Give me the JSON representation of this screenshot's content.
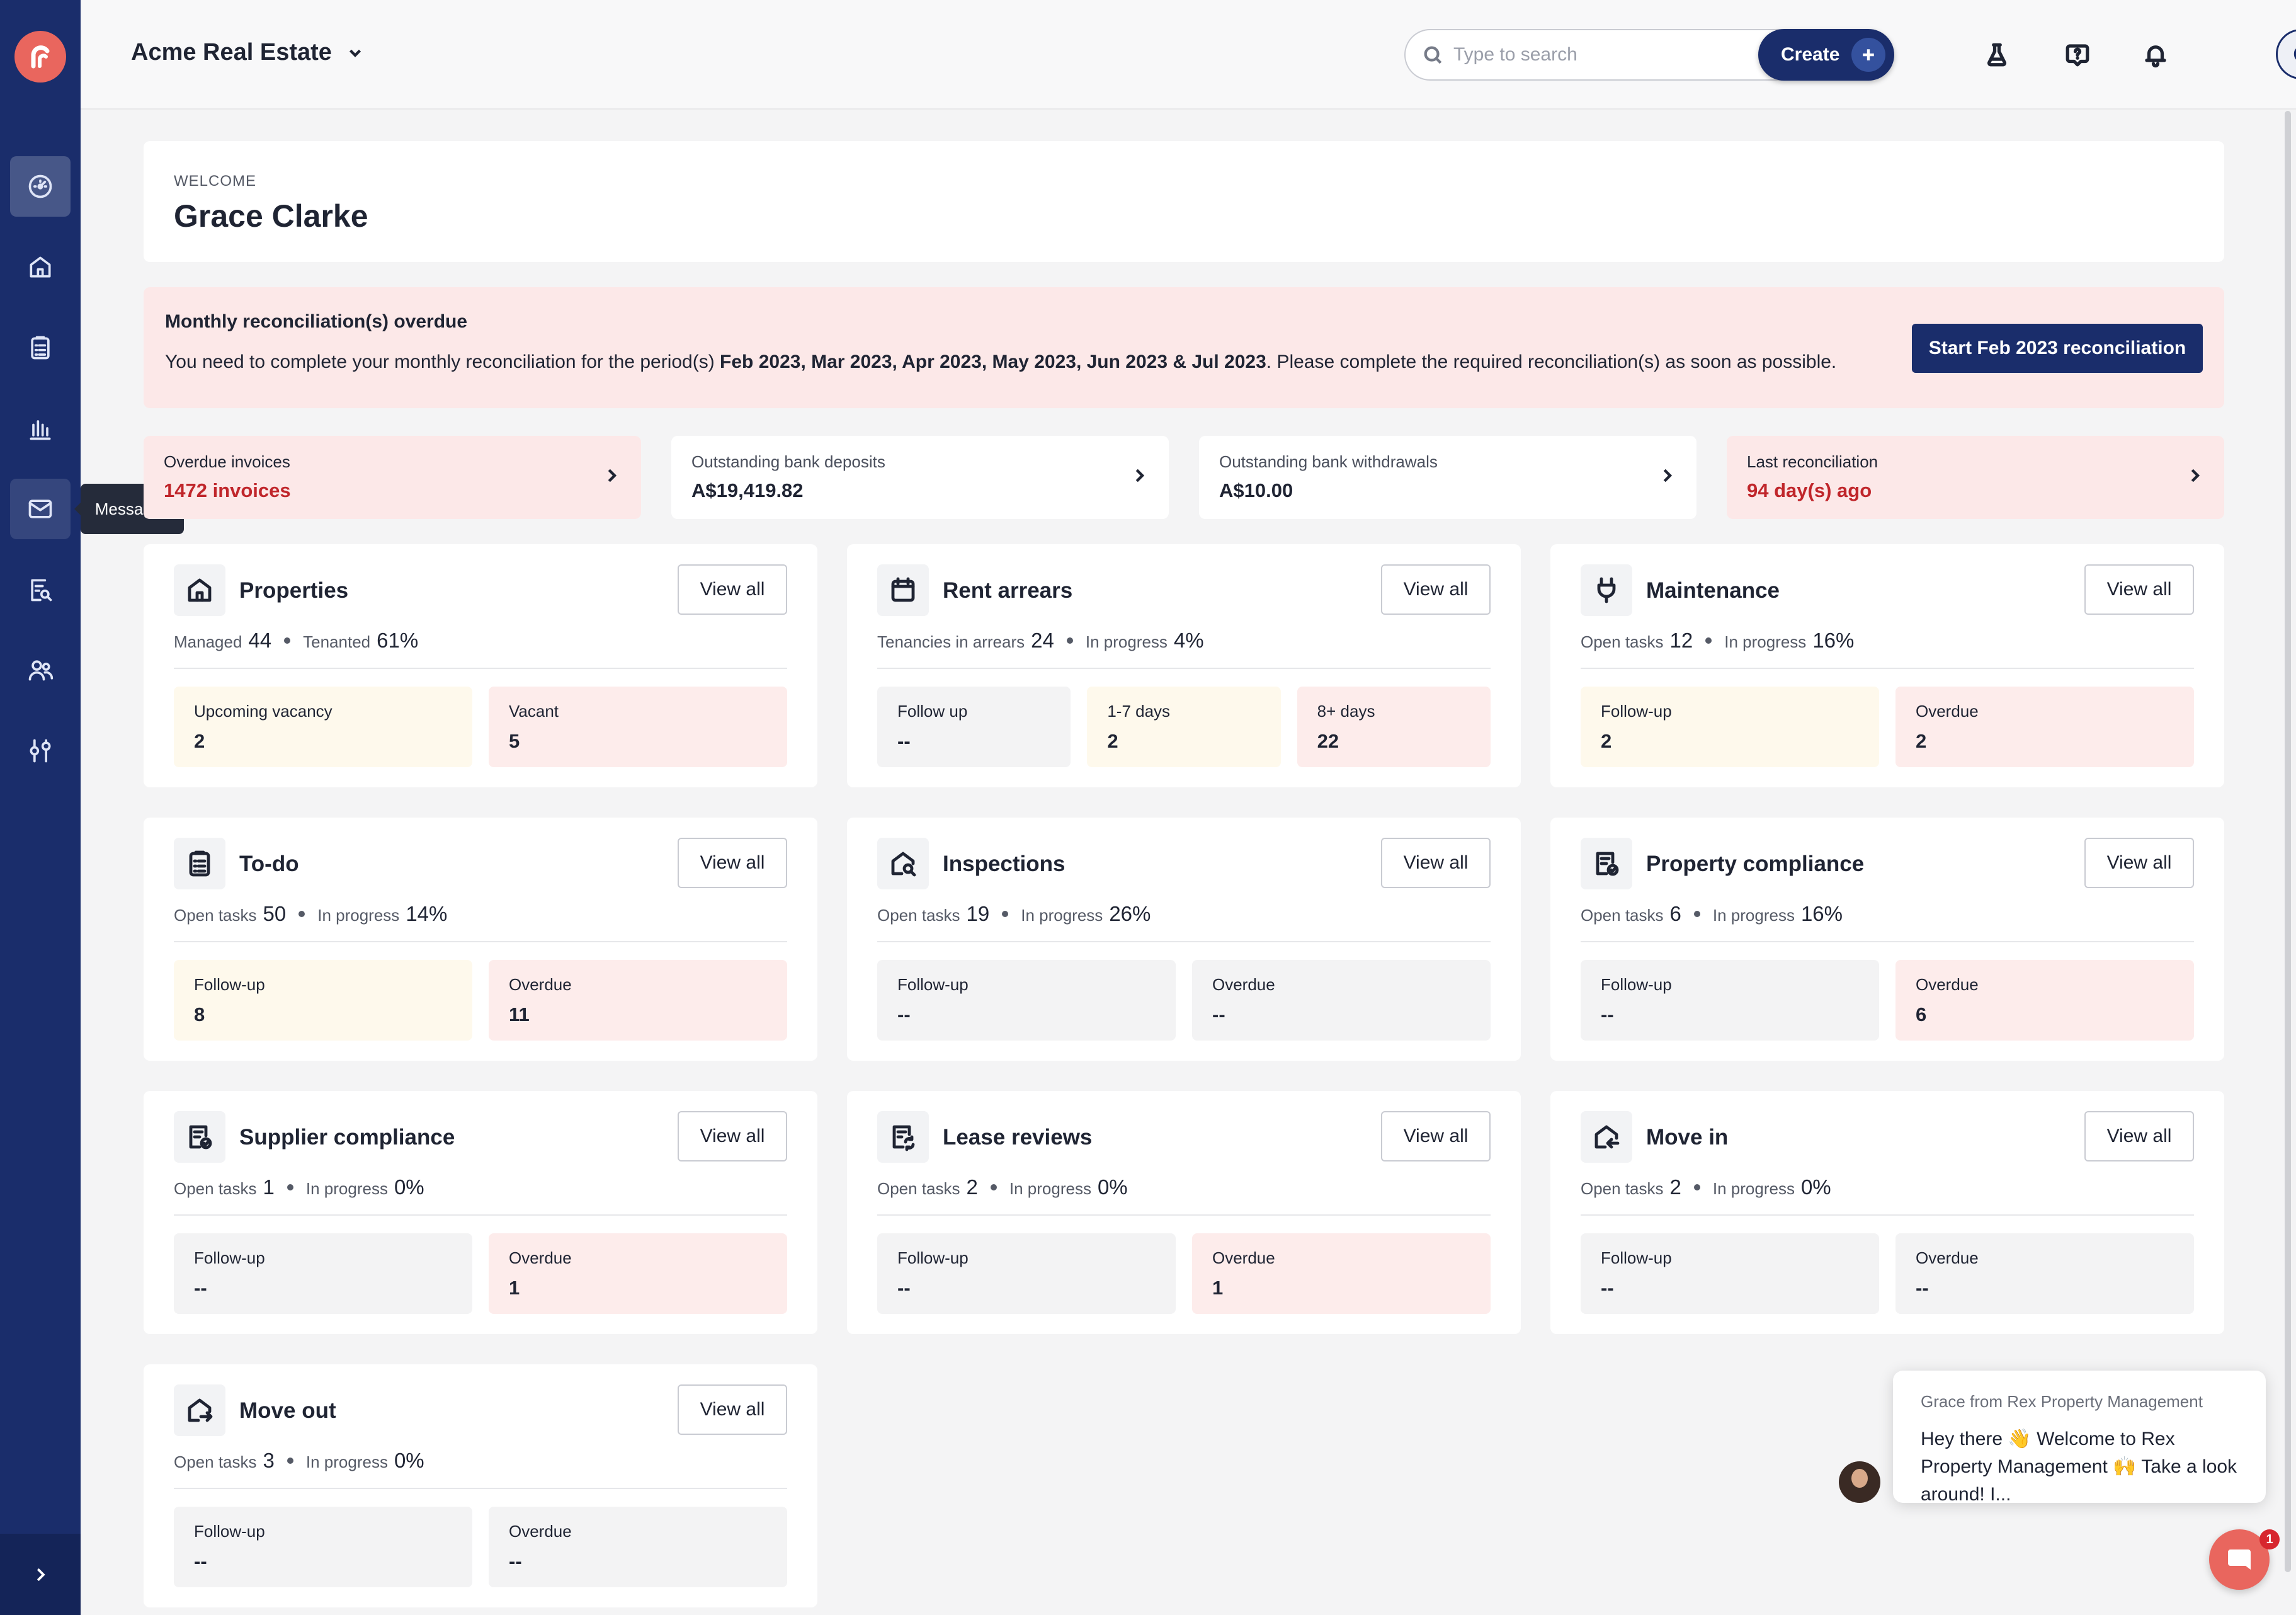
{
  "org": {
    "name": "Acme Real Estate"
  },
  "search": {
    "placeholder": "Type to search"
  },
  "create": {
    "label": "Create"
  },
  "user": {
    "initial": "G"
  },
  "sidebar": {
    "tooltip": "Messages"
  },
  "welcome": {
    "label": "WELCOME",
    "name": "Grace Clarke"
  },
  "alert": {
    "title": "Monthly reconciliation(s) overdue",
    "text_before": "You need to complete your monthly reconciliation for the period(s) ",
    "periods": "Feb 2023, Mar 2023, Apr 2023, May 2023, Jun 2023 & Jul 2023",
    "text_after": ". Please complete the required reconciliation(s) as soon as possible.",
    "button": "Start Feb 2023 reconciliation"
  },
  "stats": [
    {
      "label": "Overdue invoices",
      "value": "1472 invoices"
    },
    {
      "label": "Outstanding bank deposits",
      "value": "A$19,419.82"
    },
    {
      "label": "Outstanding bank withdrawals",
      "value": "A$10.00"
    },
    {
      "label": "Last reconciliation",
      "value": "94 day(s) ago"
    }
  ],
  "view_all": "View all",
  "cards": {
    "properties": {
      "title": "Properties",
      "m1_label": "Managed",
      "m1_value": "44",
      "m2_label": "Tenanted",
      "m2_value": "61%",
      "t1_label": "Upcoming vacancy",
      "t1_value": "2",
      "t2_label": "Vacant",
      "t2_value": "5"
    },
    "rent_arrears": {
      "title": "Rent arrears",
      "m1_label": "Tenancies in arrears",
      "m1_value": "24",
      "m2_label": "In progress",
      "m2_value": "4%",
      "t1_label": "Follow up",
      "t1_value": "--",
      "t2_label": "1-7 days",
      "t2_value": "2",
      "t3_label": "8+ days",
      "t3_value": "22"
    },
    "maintenance": {
      "title": "Maintenance",
      "m1_label": "Open tasks",
      "m1_value": "12",
      "m2_label": "In progress",
      "m2_value": "16%",
      "t1_label": "Follow-up",
      "t1_value": "2",
      "t2_label": "Overdue",
      "t2_value": "2"
    },
    "todo": {
      "title": "To-do",
      "m1_label": "Open tasks",
      "m1_value": "50",
      "m2_label": "In progress",
      "m2_value": "14%",
      "t1_label": "Follow-up",
      "t1_value": "8",
      "t2_label": "Overdue",
      "t2_value": "11"
    },
    "inspections": {
      "title": "Inspections",
      "m1_label": "Open tasks",
      "m1_value": "19",
      "m2_label": "In progress",
      "m2_value": "26%",
      "t1_label": "Follow-up",
      "t1_value": "--",
      "t2_label": "Overdue",
      "t2_value": "--"
    },
    "property_compliance": {
      "title": "Property compliance",
      "m1_label": "Open tasks",
      "m1_value": "6",
      "m2_label": "In progress",
      "m2_value": "16%",
      "t1_label": "Follow-up",
      "t1_value": "--",
      "t2_label": "Overdue",
      "t2_value": "6"
    },
    "supplier_compliance": {
      "title": "Supplier compliance",
      "m1_label": "Open tasks",
      "m1_value": "1",
      "m2_label": "In progress",
      "m2_value": "0%",
      "t1_label": "Follow-up",
      "t1_value": "--",
      "t2_label": "Overdue",
      "t2_value": "1"
    },
    "lease_reviews": {
      "title": "Lease reviews",
      "m1_label": "Open tasks",
      "m1_value": "2",
      "m2_label": "In progress",
      "m2_value": "0%",
      "t1_label": "Follow-up",
      "t1_value": "--",
      "t2_label": "Overdue",
      "t2_value": "1"
    },
    "move_in": {
      "title": "Move in",
      "m1_label": "Open tasks",
      "m1_value": "2",
      "m2_label": "In progress",
      "m2_value": "0%",
      "t1_label": "Follow-up",
      "t1_value": "--",
      "t2_label": "Overdue",
      "t2_value": "--"
    },
    "move_out": {
      "title": "Move out",
      "m1_label": "Open tasks",
      "m1_value": "3",
      "m2_label": "In progress",
      "m2_value": "0%",
      "t1_label": "Follow-up",
      "t1_value": "--",
      "t2_label": "Overdue",
      "t2_value": "--"
    }
  },
  "chat": {
    "from": "Grace from Rex Property Management",
    "message": "Hey there 👋 Welcome to Rex Property Management 🙌 Take a look around! I...",
    "badge": "1"
  },
  "colors": {
    "sidebar": "#1a2d6b",
    "brand": "#e9665e",
    "alert_bg": "#fce8e8",
    "danger_text": "#c0262b"
  }
}
